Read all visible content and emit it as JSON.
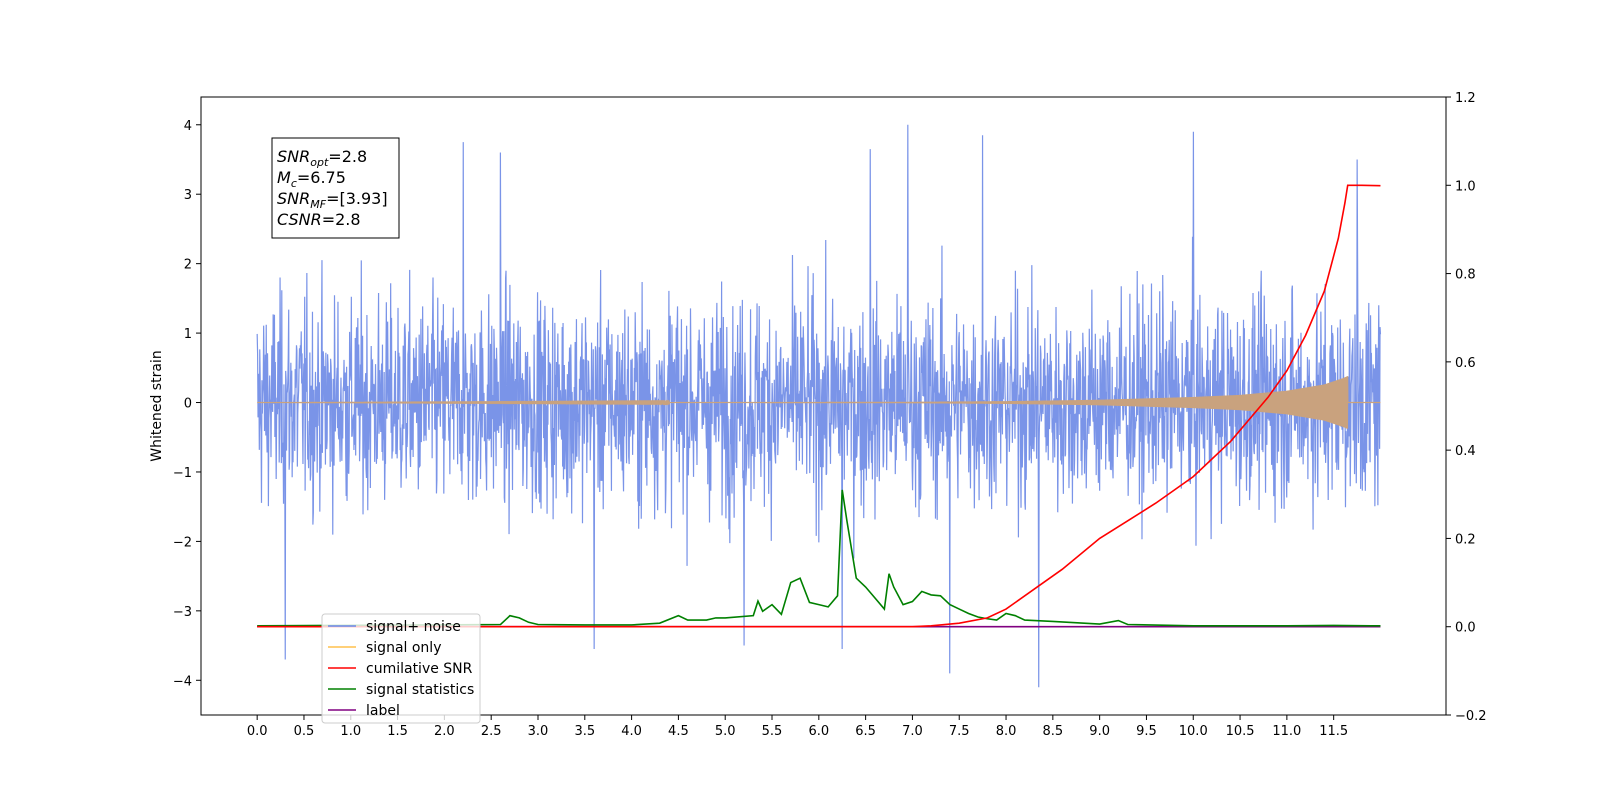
{
  "chart_data": {
    "type": "line",
    "title": "",
    "xlabel": "",
    "ylabel": "Whitened strain",
    "y2label": "",
    "xlim": [
      -0.6,
      12.7
    ],
    "ylim": [
      -4.5,
      4.4
    ],
    "y2lim": [
      -0.2,
      1.2
    ],
    "grid": false,
    "legend_position": "lower-left",
    "x_ticks": [
      "0.0",
      "0.5",
      "1.0",
      "1.5",
      "2.0",
      "2.5",
      "3.0",
      "3.5",
      "4.0",
      "4.5",
      "5.0",
      "5.5",
      "6.0",
      "6.5",
      "7.0",
      "7.5",
      "8.0",
      "8.5",
      "9.0",
      "9.5",
      "10.0",
      "10.5",
      "11.0",
      "11.5"
    ],
    "y_ticks": [
      "4",
      "3",
      "2",
      "1",
      "0",
      "−1",
      "−2",
      "−3",
      "−4"
    ],
    "y2_ticks": [
      "1.2",
      "1.0",
      "0.8",
      "0.6",
      "0.4",
      "0.2",
      "0.0",
      "−0.2"
    ],
    "annotation": {
      "lines": [
        {
          "base": "SNR",
          "sub": "opt",
          "value": "=2.8"
        },
        {
          "base": "M",
          "sub": "c",
          "value": "=6.75"
        },
        {
          "base": "SNR",
          "sub": "MF",
          "value": "=[3.93]"
        },
        {
          "base": "CSNR",
          "sub": "",
          "value": "=2.8"
        }
      ]
    },
    "legend": [
      {
        "label": "signal+ noise",
        "color": "#6a87e6"
      },
      {
        "label": "signal only",
        "color": "#ffc04d"
      },
      {
        "label": "cumilative SNR",
        "color": "#ff0000"
      },
      {
        "label": "signal statistics",
        "color": "#008000"
      },
      {
        "label": "label",
        "color": "#800080"
      }
    ],
    "series": [
      {
        "name": "signal+ noise",
        "axis": "left",
        "color": "#7a94e8",
        "x_range": [
          0.0,
          12.0
        ],
        "style": "gaussian noise, sigma about 1.0, min about -4.1, max about 4.0",
        "spikes": [
          {
            "x": 0.3,
            "y": -3.7
          },
          {
            "x": 2.2,
            "y": 3.75
          },
          {
            "x": 2.6,
            "y": 3.6
          },
          {
            "x": 3.6,
            "y": -3.55
          },
          {
            "x": 5.2,
            "y": -3.5
          },
          {
            "x": 6.25,
            "y": -3.55
          },
          {
            "x": 6.55,
            "y": 3.65
          },
          {
            "x": 6.95,
            "y": 4.0
          },
          {
            "x": 7.4,
            "y": -3.9
          },
          {
            "x": 7.75,
            "y": 3.85
          },
          {
            "x": 8.35,
            "y": -4.1
          },
          {
            "x": 10.0,
            "y": 3.9
          },
          {
            "x": 11.75,
            "y": 3.5
          }
        ]
      },
      {
        "name": "signal only",
        "axis": "left",
        "color": "#c9a27e",
        "x_range": [
          0.0,
          12.0
        ],
        "merger_time": 11.65,
        "amplitude": [
          [
            0,
            0.0
          ],
          [
            7.0,
            0.01
          ],
          [
            8.0,
            0.02
          ],
          [
            9.0,
            0.04
          ],
          [
            10.0,
            0.08
          ],
          [
            10.5,
            0.11
          ],
          [
            11.0,
            0.17
          ],
          [
            11.4,
            0.26
          ],
          [
            11.6,
            0.35
          ],
          [
            11.65,
            0.38
          ],
          [
            11.7,
            0.0
          ]
        ]
      },
      {
        "name": "cumilative SNR",
        "axis": "right",
        "color": "#ff0000",
        "x": [
          0,
          7.0,
          7.2,
          7.5,
          7.8,
          8.0,
          8.3,
          8.6,
          9.0,
          9.3,
          9.6,
          10.0,
          10.4,
          10.8,
          11.0,
          11.2,
          11.4,
          11.55,
          11.62,
          11.65,
          11.8,
          12.0
        ],
        "y": [
          0,
          0,
          0.002,
          0.008,
          0.02,
          0.04,
          0.085,
          0.13,
          0.2,
          0.24,
          0.28,
          0.34,
          0.42,
          0.52,
          0.58,
          0.66,
          0.76,
          0.88,
          0.96,
          1.0,
          1.0,
          0.999
        ]
      },
      {
        "name": "signal statistics",
        "axis": "right",
        "color": "#008000",
        "x": [
          0,
          2.6,
          2.7,
          2.8,
          2.9,
          3.0,
          3.5,
          4.0,
          4.3,
          4.5,
          4.6,
          4.8,
          4.9,
          5.0,
          5.3,
          5.35,
          5.4,
          5.5,
          5.6,
          5.7,
          5.8,
          5.9,
          6.0,
          6.1,
          6.2,
          6.25,
          6.3,
          6.4,
          6.5,
          6.6,
          6.7,
          6.75,
          6.8,
          6.9,
          7.0,
          7.1,
          7.2,
          7.3,
          7.4,
          7.5,
          7.6,
          7.7,
          7.8,
          7.9,
          8.0,
          8.1,
          8.2,
          8.5,
          9.0,
          9.2,
          9.3,
          10.0,
          11.0,
          11.5,
          11.9,
          12.0
        ],
        "y": [
          0.002,
          0.005,
          0.025,
          0.02,
          0.01,
          0.005,
          0.004,
          0.004,
          0.008,
          0.025,
          0.015,
          0.015,
          0.02,
          0.02,
          0.025,
          0.058,
          0.035,
          0.05,
          0.028,
          0.1,
          0.11,
          0.055,
          0.05,
          0.045,
          0.07,
          0.31,
          0.24,
          0.11,
          0.09,
          0.065,
          0.04,
          0.12,
          0.09,
          0.05,
          0.057,
          0.08,
          0.072,
          0.07,
          0.05,
          0.04,
          0.03,
          0.022,
          0.018,
          0.015,
          0.03,
          0.025,
          0.015,
          0.012,
          0.006,
          0.014,
          0.005,
          0.002,
          0.002,
          0.003,
          0.002,
          0.002
        ]
      },
      {
        "name": "label",
        "axis": "right",
        "color": "#800080",
        "x": [
          0,
          12.0
        ],
        "y": [
          0,
          0
        ]
      }
    ]
  }
}
